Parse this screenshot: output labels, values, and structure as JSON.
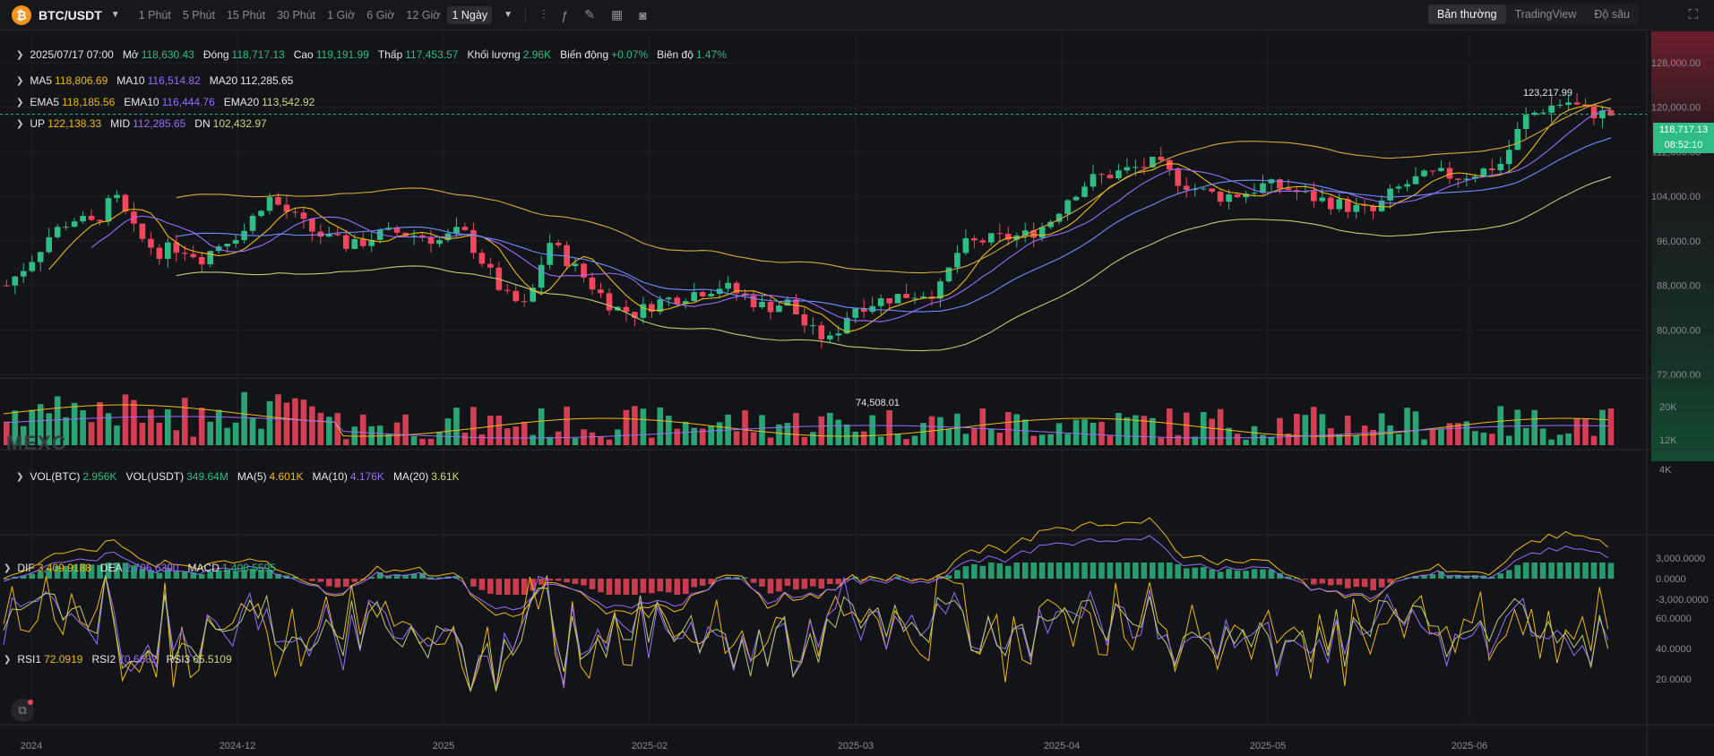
{
  "toolbar": {
    "coin_symbol": "₿",
    "pair": "BTC/USDT",
    "intervals": [
      "1 Phút",
      "5 Phút",
      "15 Phút",
      "30 Phút",
      "1 Giờ",
      "6 Giờ",
      "12 Giờ",
      "1 Ngày"
    ],
    "active_interval": "1 Ngày",
    "views": [
      "Bản thường",
      "TradingView",
      "Độ sâu"
    ],
    "active_view": "Bản thường"
  },
  "legend": {
    "ohlc": {
      "date": "2025/07/17 07:00",
      "open_label": "Mở",
      "open": "118,630.43",
      "close_label": "Đóng",
      "close": "118,717.13",
      "high_label": "Cao",
      "high": "119,191.99",
      "low_label": "Thấp",
      "low": "117,453.57",
      "volume_label": "Khối lượng",
      "volume": "2.96K",
      "change_label": "Biến động",
      "change": "+0.07%",
      "amplitude_label": "Biên độ",
      "amplitude": "1.47%"
    },
    "ma": {
      "ma5_label": "MA5",
      "ma5": "118,806.69",
      "ma10_label": "MA10",
      "ma10": "116,514.82",
      "ma20_label": "MA20",
      "ma20": "112,285.65"
    },
    "ema": {
      "ema5_label": "EMA5",
      "ema5": "118,185.56",
      "ema10_label": "EMA10",
      "ema10": "116,444.76",
      "ema20_label": "EMA20",
      "ema20": "113,542.92"
    },
    "boll": {
      "up_label": "UP",
      "up": "122,138.33",
      "mid_label": "MID",
      "mid": "112,285.65",
      "dn_label": "DN",
      "dn": "102,432.97"
    },
    "vol": {
      "vol_btc_label": "VOL(BTC)",
      "vol_btc": "2.956K",
      "vol_usdt_label": "VOL(USDT)",
      "vol_usdt": "349.64M",
      "ma5_label": "MA(5)",
      "ma5": "4.601K",
      "ma10_label": "MA(10)",
      "ma10": "4.176K",
      "ma20_label": "MA(20)",
      "ma20": "3.61K"
    },
    "macd": {
      "dif_label": "DIF",
      "dif": "3,409.9188",
      "dea_label": "DEA",
      "dea": "2,705.6390",
      "macd_label": "MACD",
      "macd": "1,408.5595"
    },
    "rsi": {
      "rsi1_label": "RSI1",
      "rsi1": "72.0919",
      "rsi2_label": "RSI2",
      "rsi2": "70.6682",
      "rsi3_label": "RSI3",
      "rsi3": "65.5109"
    }
  },
  "price_axis": [
    "128,000.00",
    "120,000.00",
    "112,000.00",
    "104,000.00",
    "96,000.00",
    "88,000.00",
    "80,000.00",
    "72,000.00"
  ],
  "vol_axis": [
    "20K",
    "12K",
    "4K"
  ],
  "macd_axis": [
    "3,000.0000",
    "0.0000",
    "-3,000.0000"
  ],
  "rsi_axis": [
    "60.0000",
    "40.0000",
    "20.0000"
  ],
  "time_axis": [
    "2024",
    "2024-12",
    "2025",
    "2025-02",
    "2025-03",
    "2025-04",
    "2025-05",
    "2025-06"
  ],
  "current_price": "118,717.13",
  "countdown": "08:52:10",
  "high_marker": "123,217.99",
  "low_marker": "74,508.01",
  "watermark": "MEXC",
  "colors": {
    "up": "#2ebd85",
    "down": "#f6465d",
    "ma5": "#f0b90b",
    "ma10": "#9b6cff",
    "ma20": "#6d8dff"
  },
  "chart_data": {
    "type": "candlestick",
    "x_range": [
      "2024",
      "2025-07"
    ],
    "y_range": [
      72000,
      128000
    ],
    "series": [
      {
        "name": "BTC/USDT",
        "closes": [
          88000,
          92000,
          97000,
          100000,
          99000,
          104000,
          97000,
          94000,
          95000,
          93000,
          96000,
          98000,
          104000,
          101000,
          98000,
          96000,
          95000,
          97000,
          97500,
          97000,
          96000,
          98000,
          92000,
          86000,
          84000,
          96000,
          92000,
          88000,
          84000,
          83000,
          85000,
          86000,
          87000,
          88000,
          86000,
          84000,
          85000,
          80000,
          78000,
          84000,
          85000,
          86000,
          86500,
          87000,
          95000,
          96000,
          96500,
          97000,
          99000,
          104000,
          107000,
          108000,
          109000,
          110000,
          107000,
          105000,
          104000,
          104500,
          106000,
          105500,
          104000,
          103000,
          102000,
          101000,
          105000,
          107000,
          108000,
          107500,
          108500,
          110000,
          118000,
          120000,
          121000,
          119000,
          118717
        ]
      }
    ]
  }
}
